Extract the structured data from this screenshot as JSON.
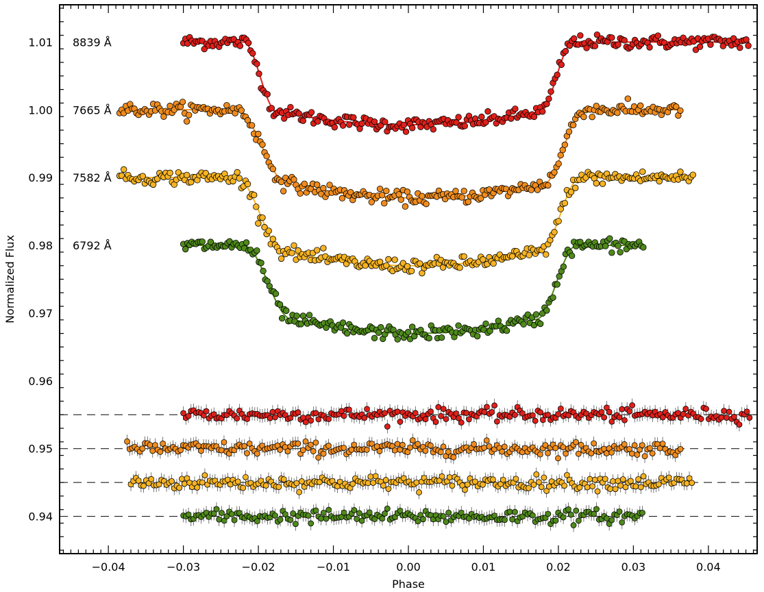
{
  "chart_data": {
    "type": "scatter",
    "title": "",
    "xlabel": "Phase",
    "ylabel": "Normalized Flux",
    "xlim": [
      -0.0465,
      0.0465
    ],
    "ylim": [
      0.9345,
      1.0155
    ],
    "x_ticks": [
      -0.04,
      -0.03,
      -0.02,
      -0.01,
      0.0,
      0.01,
      0.02,
      0.03,
      0.04
    ],
    "x_tick_labels": [
      "−0.04",
      "−0.03",
      "−0.02",
      "−0.01",
      "0.00",
      "0.01",
      "0.02",
      "0.03",
      "0.04"
    ],
    "y_ticks": [
      0.94,
      0.95,
      0.96,
      0.97,
      0.98,
      0.99,
      1.0,
      1.01
    ],
    "y_tick_labels": [
      "0.94",
      "0.95",
      "0.96",
      "0.97",
      "0.98",
      "0.99",
      "1.00",
      "1.01"
    ],
    "grid": false,
    "legend": "none",
    "series": [
      {
        "name": "8839 Å",
        "color": "#e0201b",
        "x_range": [
          -0.03,
          0.0455
        ],
        "baseline": 1.01,
        "depth": 0.0122,
        "t1": -0.022,
        "t2": -0.0175,
        "t3": 0.0175,
        "t4": 0.022,
        "scatter": 0.0005,
        "residual_baseline": 0.955,
        "residual_range": [
          -0.03,
          0.0455
        ]
      },
      {
        "name": "7665 Å",
        "color": "#f08c1e",
        "x_range": [
          -0.0385,
          0.0365
        ],
        "baseline": 1.0,
        "depth": 0.013,
        "t1": -0.023,
        "t2": -0.016,
        "t3": 0.018,
        "t4": 0.0235,
        "scatter": 0.0005,
        "residual_baseline": 0.95,
        "residual_range": [
          -0.0375,
          0.0365
        ]
      },
      {
        "name": "7582 Å",
        "color": "#f6b323",
        "x_range": [
          -0.0385,
          0.038
        ],
        "baseline": 0.99,
        "depth": 0.013,
        "t1": -0.023,
        "t2": -0.0165,
        "t3": 0.0175,
        "t4": 0.023,
        "scatter": 0.0005,
        "residual_baseline": 0.945,
        "residual_range": [
          -0.037,
          0.038
        ]
      },
      {
        "name": "6792 Å",
        "color": "#4f8a1b",
        "x_range": [
          -0.03,
          0.0315
        ],
        "baseline": 0.98,
        "depth": 0.013,
        "t1": -0.022,
        "t2": -0.0155,
        "t3": 0.017,
        "t4": 0.0225,
        "scatter": 0.0005,
        "residual_baseline": 0.94,
        "residual_range": [
          -0.03,
          0.0315
        ]
      }
    ]
  }
}
